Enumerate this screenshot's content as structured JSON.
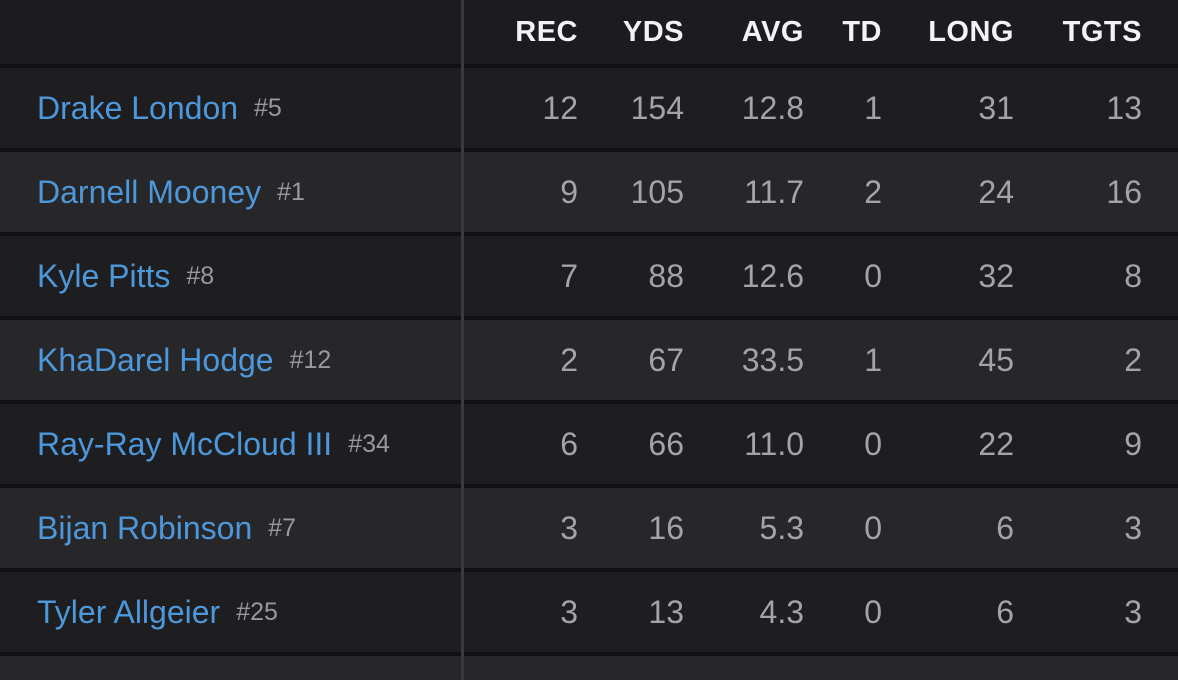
{
  "columns": [
    "REC",
    "YDS",
    "AVG",
    "TD",
    "LONG",
    "TGTS"
  ],
  "players": [
    {
      "name": "Drake London",
      "number": "#5",
      "rec": "12",
      "yds": "154",
      "avg": "12.8",
      "td": "1",
      "long": "31",
      "tgts": "13"
    },
    {
      "name": "Darnell Mooney",
      "number": "#1",
      "rec": "9",
      "yds": "105",
      "avg": "11.7",
      "td": "2",
      "long": "24",
      "tgts": "16"
    },
    {
      "name": "Kyle Pitts",
      "number": "#8",
      "rec": "7",
      "yds": "88",
      "avg": "12.6",
      "td": "0",
      "long": "32",
      "tgts": "8"
    },
    {
      "name": "KhaDarel Hodge",
      "number": "#12",
      "rec": "2",
      "yds": "67",
      "avg": "33.5",
      "td": "1",
      "long": "45",
      "tgts": "2"
    },
    {
      "name": "Ray-Ray McCloud III",
      "number": "#34",
      "rec": "6",
      "yds": "66",
      "avg": "11.0",
      "td": "0",
      "long": "22",
      "tgts": "9"
    },
    {
      "name": "Bijan Robinson",
      "number": "#7",
      "rec": "3",
      "yds": "16",
      "avg": "5.3",
      "td": "0",
      "long": "6",
      "tgts": "3"
    },
    {
      "name": "Tyler Allgeier",
      "number": "#25",
      "rec": "3",
      "yds": "13",
      "avg": "4.3",
      "td": "0",
      "long": "6",
      "tgts": "3"
    }
  ]
}
